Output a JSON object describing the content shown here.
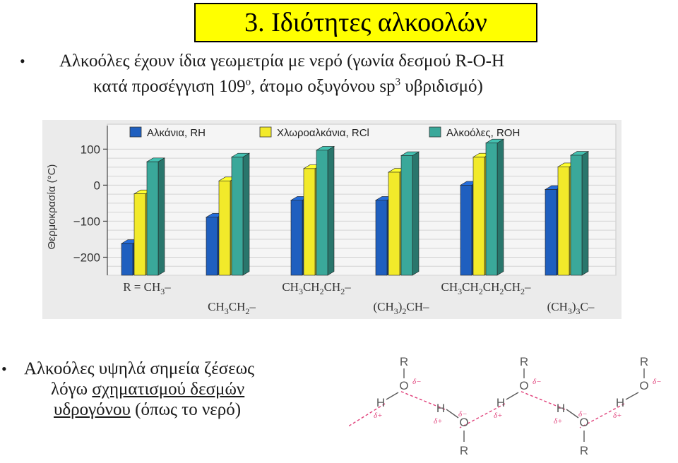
{
  "slide": {
    "title": "3. Ιδιότητες αλκοολών",
    "bullet1_line1": "Αλκοόλες έχουν ίδια γεωμετρία με νερό (γωνία δεσμού R-O-H",
    "bullet1_line2_a": "κατά προσέγγιση 109",
    "bullet1_line2_sup": "ο",
    "bullet1_line2_b": ",  άτομο οξυγόνου sp",
    "bullet1_line2_sup2": "3",
    "bullet1_line2_c": " υβριδισμό)",
    "bullet_symbol": "•",
    "bullet2_line1": "Αλκοόλες υψηλά σημεία ζέσεως",
    "bullet2_line2_a": "λόγω ",
    "bullet2_line2_u": "σχηματισμού δεσμών",
    "bullet2_line3_u": "υδρογόνου",
    "bullet2_line3_b": " (όπως το νερό)"
  },
  "colors": {
    "title_bg": "#ffff00",
    "alkane": "#1f5fbf",
    "haloalkane": "#f2ea2a",
    "alcohol": "#3aa89a",
    "chart_bg": "#ebebeb",
    "hbond_line": "#e0407a",
    "atom": "#5a5a5a",
    "partial_charge": "#e0407a"
  },
  "chart_data": {
    "type": "bar",
    "categories": [
      "CH3–",
      "CH3CH2–",
      "CH3CH2CH2–",
      "(CH3)2CH–",
      "CH3CH2CH2CH2–",
      "(CH3)3C–"
    ],
    "category_labels": [
      {
        "row": 1,
        "parts": [
          "R = CH",
          "3",
          "–"
        ]
      },
      {
        "row": 2,
        "parts": [
          "CH",
          "3",
          "CH",
          "2",
          "–"
        ]
      },
      {
        "row": 1,
        "parts": [
          "CH",
          "3",
          "CH",
          "2",
          "CH",
          "2",
          "–"
        ]
      },
      {
        "row": 2,
        "parts": [
          "(CH",
          "3",
          ")",
          "2",
          "CH–"
        ]
      },
      {
        "row": 1,
        "parts": [
          "CH",
          "3",
          "CH",
          "2",
          "CH",
          "2",
          "CH",
          "2",
          "–"
        ]
      },
      {
        "row": 2,
        "parts": [
          "(CH",
          "3",
          ")",
          "3",
          "C–"
        ]
      }
    ],
    "series": [
      {
        "name": "Αλκάνια, RH",
        "values": [
          -162,
          -89,
          -42,
          -42,
          0,
          -12
        ]
      },
      {
        "name": "Χλωροαλκάνια, RCl",
        "values": [
          -24,
          12,
          46,
          36,
          78,
          51
        ]
      },
      {
        "name": "Αλκοόλες, ROH",
        "values": [
          65,
          78,
          97,
          82,
          117,
          83
        ]
      }
    ],
    "ylabel": "Θερμοκρασία (°C)",
    "yticks": [
      100,
      0,
      -100,
      -200
    ],
    "ytick_labels": [
      "100",
      "0",
      "−100",
      "−200"
    ],
    "ylim": [
      -250,
      130
    ],
    "grid": true,
    "legend": "top"
  },
  "hbond_diagram": {
    "atom_R": "R",
    "atom_O": "O",
    "atom_H": "H",
    "delta_minus": "δ−",
    "delta_plus": "δ+"
  }
}
